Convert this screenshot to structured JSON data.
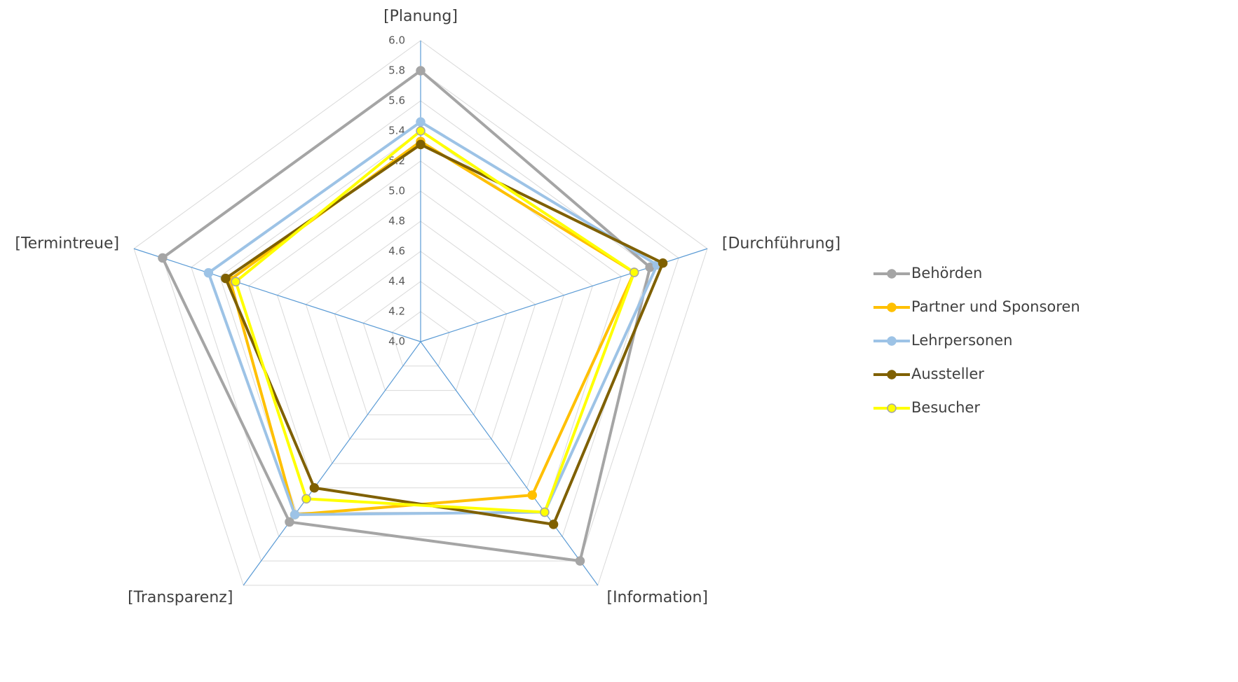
{
  "chart_data": {
    "type": "radar",
    "categories": [
      "[Planung]",
      "[Durchführung]",
      "[Information]",
      "[Transparenz]",
      "[Termintreue]"
    ],
    "series": [
      {
        "name": "Behörden",
        "color": "#a5a5a5",
        "values": [
          5.8,
          5.6,
          5.8,
          5.48,
          5.8
        ]
      },
      {
        "name": "Partner und Sponsoren",
        "color": "#ffc000",
        "values": [
          5.33,
          5.49,
          5.26,
          5.42,
          5.33
        ]
      },
      {
        "name": "Lehrpersonen",
        "color": "#9dc3e6",
        "values": [
          5.46,
          5.65,
          5.4,
          5.42,
          5.48
        ]
      },
      {
        "name": "Aussteller",
        "color": "#7f6000",
        "values": [
          5.31,
          5.69,
          5.5,
          5.2,
          5.36
        ]
      },
      {
        "name": "Besucher",
        "color": "#ffff00",
        "values": [
          5.4,
          5.49,
          5.4,
          5.29,
          5.29
        ]
      }
    ],
    "ylim": [
      4,
      6
    ],
    "yticks": [
      {
        "value": 4,
        "label": "4.0"
      },
      4.2,
      4.4,
      4.6,
      4.8,
      {
        "value": 5,
        "label": "5.0"
      },
      5.2,
      5.4,
      5.6,
      5.8,
      {
        "value": 6,
        "label": "6.0"
      }
    ],
    "grid": true
  }
}
